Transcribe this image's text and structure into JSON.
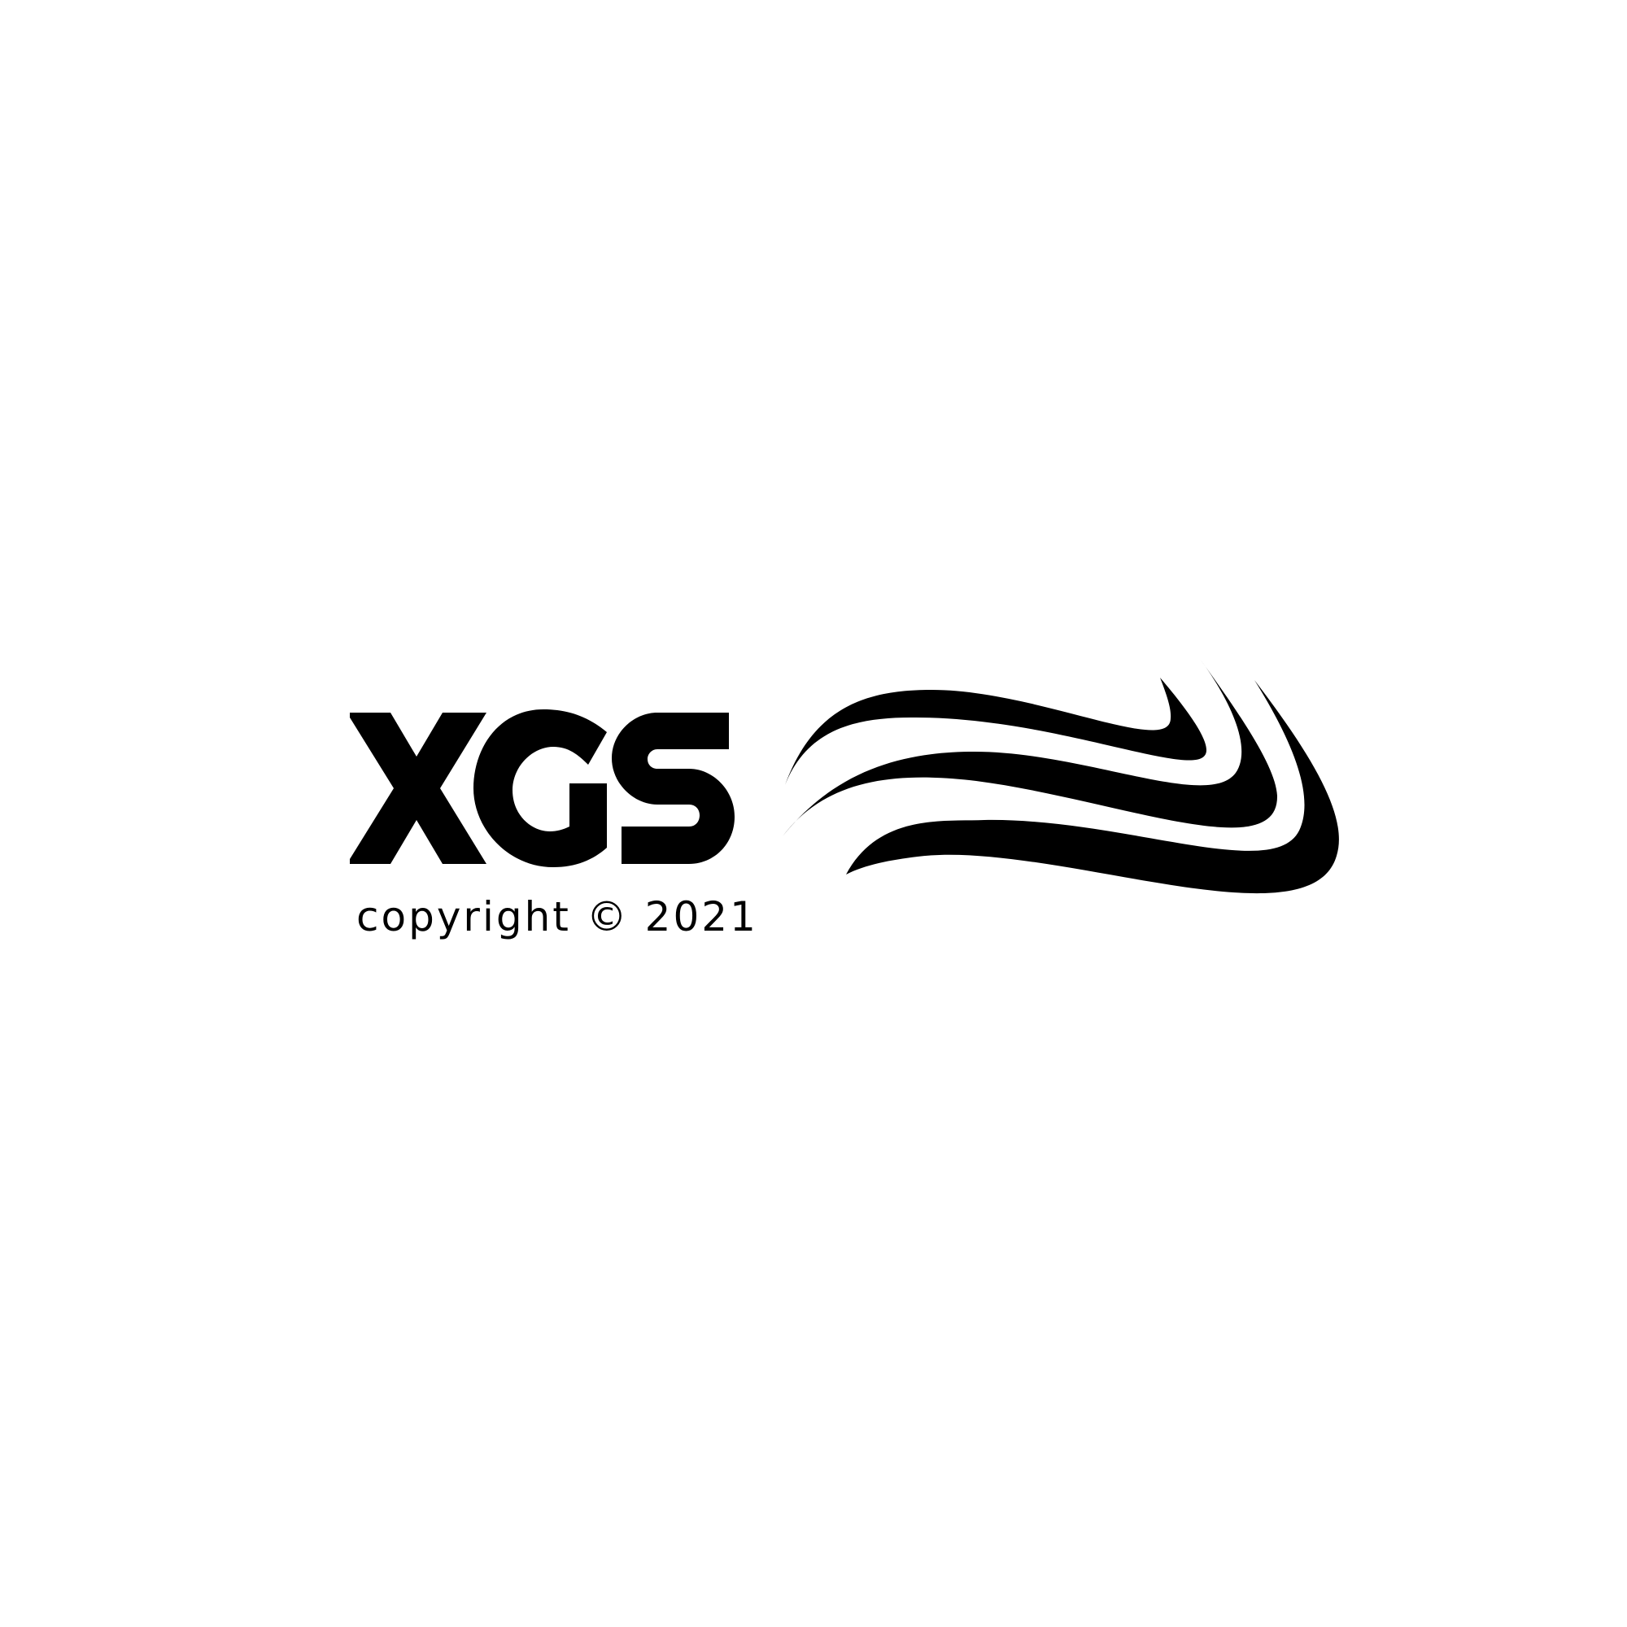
{
  "logo": {
    "wordmark": "XGS",
    "ink_color": "#000000",
    "background_color": "#ffffff"
  },
  "copyright": {
    "text": "copyright © 2021"
  }
}
